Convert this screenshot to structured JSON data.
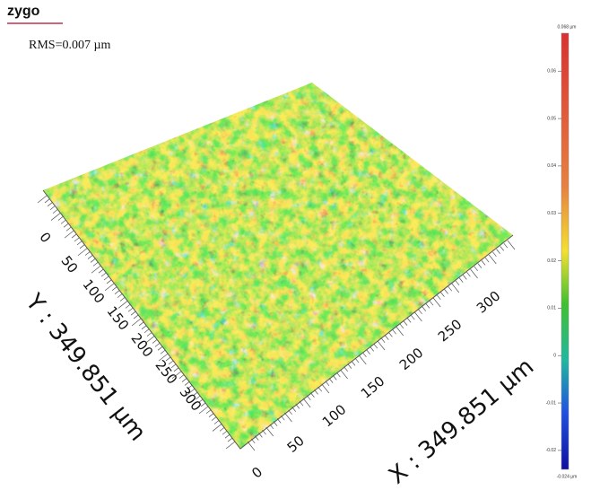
{
  "logo": "zygo",
  "rms": "RMS=0.007 µm",
  "colorbar": {
    "top_label": "0.068 µm",
    "bottom_label": "-0.024 µm",
    "range": [
      -0.024,
      0.068
    ],
    "ticks": [
      0.06,
      0.05,
      0.04,
      0.03,
      0.02,
      0.01,
      0,
      -0.01,
      -0.02
    ]
  },
  "y_axis": {
    "title": "Y : 349.851 µm",
    "ticks": [
      "0",
      "50",
      "100",
      "150",
      "200",
      "250",
      "300"
    ]
  },
  "x_axis": {
    "title": "X : 349.851 µm",
    "ticks": [
      "0",
      "50",
      "100",
      "150",
      "200",
      "250",
      "300"
    ]
  }
}
